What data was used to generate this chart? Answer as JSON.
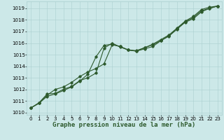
{
  "title": "Graphe pression niveau de la mer (hPa)",
  "bg_color": "#cce8e8",
  "grid_color": "#aacfcf",
  "line_color": "#2d5a2d",
  "marker_color": "#2d5a2d",
  "xlim": [
    -0.5,
    23.5
  ],
  "ylim": [
    1009.8,
    1019.6
  ],
  "yticks": [
    1010,
    1011,
    1012,
    1013,
    1014,
    1015,
    1016,
    1017,
    1018,
    1019
  ],
  "xticks": [
    0,
    1,
    2,
    3,
    4,
    5,
    6,
    7,
    8,
    9,
    10,
    11,
    12,
    13,
    14,
    15,
    16,
    17,
    18,
    19,
    20,
    21,
    22,
    23
  ],
  "series1_x": [
    0,
    1,
    2,
    3,
    4,
    5,
    6,
    7,
    8,
    9,
    10,
    11,
    12,
    13,
    14,
    15,
    16,
    17,
    18,
    19,
    20,
    21,
    22,
    23
  ],
  "series1_y": [
    1010.4,
    1010.8,
    1011.4,
    1011.6,
    1011.9,
    1012.2,
    1012.7,
    1013.3,
    1014.8,
    1015.8,
    1015.9,
    1015.7,
    1015.4,
    1015.3,
    1015.5,
    1015.7,
    1016.2,
    1016.6,
    1017.2,
    1017.8,
    1018.1,
    1018.7,
    1019.0,
    1019.2
  ],
  "series2_x": [
    0,
    1,
    2,
    3,
    4,
    5,
    6,
    7,
    8,
    9,
    10,
    11,
    12,
    13,
    14,
    15,
    16,
    17,
    18,
    19,
    20,
    21,
    22,
    23
  ],
  "series2_y": [
    1010.4,
    1010.8,
    1011.5,
    1012.0,
    1012.2,
    1012.6,
    1013.1,
    1013.5,
    1013.8,
    1014.2,
    1015.85,
    1015.7,
    1015.4,
    1015.3,
    1015.6,
    1015.9,
    1016.3,
    1016.7,
    1017.3,
    1017.9,
    1018.3,
    1018.9,
    1019.1,
    1019.2
  ],
  "series3_x": [
    0,
    1,
    2,
    3,
    4,
    5,
    6,
    7,
    8,
    9,
    10,
    11,
    12,
    13,
    14,
    15,
    16,
    17,
    18,
    19,
    20,
    21,
    22,
    23
  ],
  "series3_y": [
    1010.4,
    1010.85,
    1011.6,
    1011.65,
    1012.0,
    1012.25,
    1012.75,
    1013.0,
    1013.4,
    1015.55,
    1016.0,
    1015.65,
    1015.4,
    1015.35,
    1015.6,
    1015.85,
    1016.2,
    1016.65,
    1017.25,
    1017.85,
    1018.2,
    1018.8,
    1019.0,
    1019.2
  ],
  "title_fontsize": 6.5,
  "tick_fontsize": 5.0,
  "linewidth": 0.8,
  "markersize": 1.8
}
